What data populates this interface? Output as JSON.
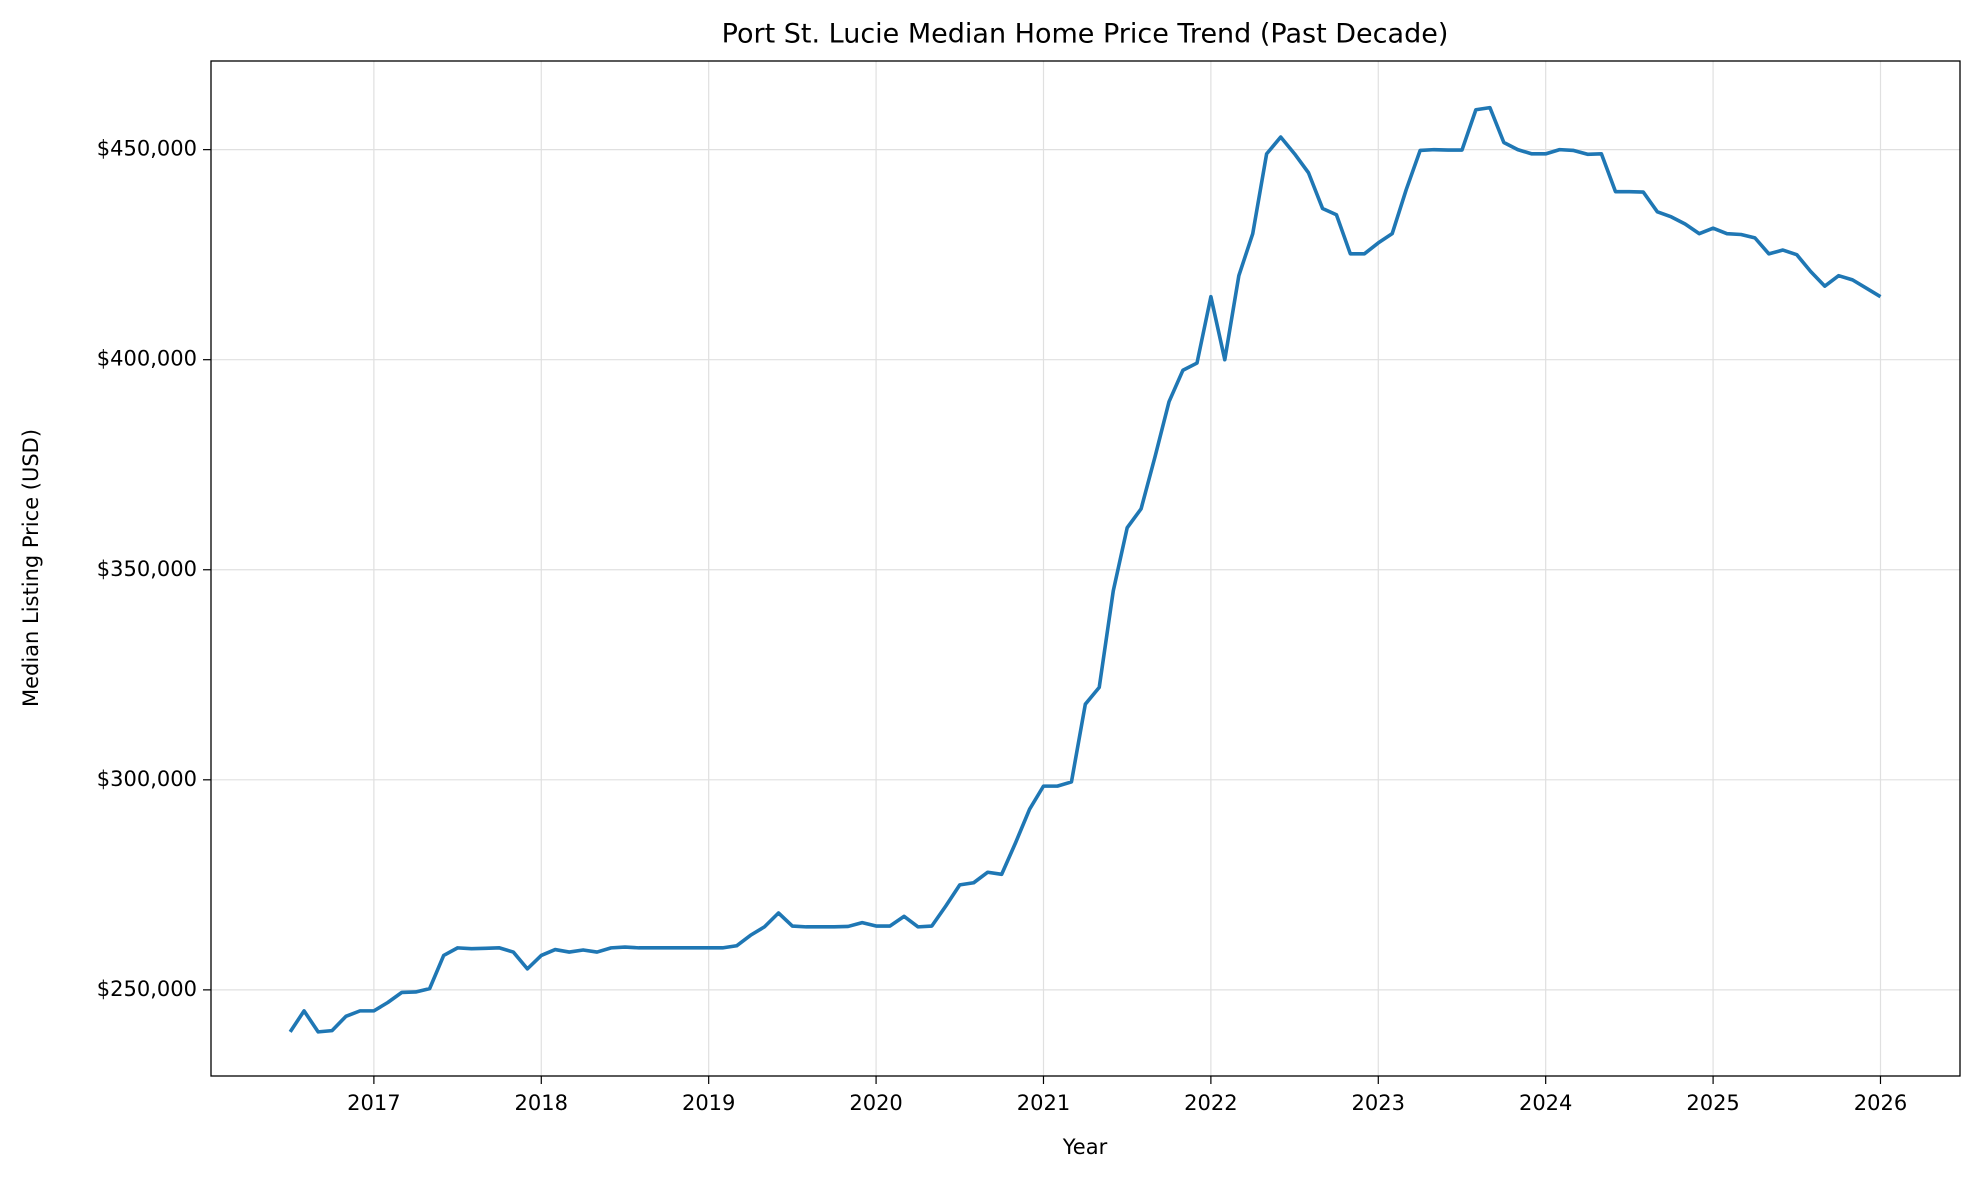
{
  "chart_data": {
    "type": "line",
    "title": "Port St. Lucie Median Home Price Trend (Past Decade)",
    "x_label": "Year",
    "y_label": "Median Listing Price (USD)",
    "color": "#1f77b4",
    "grid": true,
    "x": [
      2016.5,
      2016.583,
      2016.667,
      2016.75,
      2016.833,
      2016.917,
      2017,
      2017.083,
      2017.167,
      2017.25,
      2017.333,
      2017.417,
      2017.5,
      2017.583,
      2017.667,
      2017.75,
      2017.833,
      2017.917,
      2018,
      2018.083,
      2018.167,
      2018.25,
      2018.333,
      2018.417,
      2018.5,
      2018.583,
      2018.667,
      2018.75,
      2018.833,
      2018.917,
      2019,
      2019.083,
      2019.167,
      2019.25,
      2019.333,
      2019.417,
      2019.5,
      2019.583,
      2019.667,
      2019.75,
      2019.833,
      2019.917,
      2020,
      2020.083,
      2020.167,
      2020.25,
      2020.333,
      2020.417,
      2020.5,
      2020.583,
      2020.667,
      2020.75,
      2020.833,
      2020.917,
      2021,
      2021.083,
      2021.167,
      2021.25,
      2021.333,
      2021.417,
      2021.5,
      2021.583,
      2021.667,
      2021.75,
      2021.833,
      2021.917,
      2022,
      2022.083,
      2022.167,
      2022.25,
      2022.333,
      2022.417,
      2022.5,
      2022.583,
      2022.667,
      2022.75,
      2022.833,
      2022.917,
      2023,
      2023.083,
      2023.167,
      2023.25,
      2023.333,
      2023.417,
      2023.5,
      2023.583,
      2023.667,
      2023.75,
      2023.833,
      2023.917,
      2024,
      2024.083,
      2024.167,
      2024.25,
      2024.333,
      2024.417,
      2024.5,
      2024.583,
      2024.667,
      2024.75,
      2024.833,
      2024.917,
      2025,
      2025.083,
      2025.167,
      2025.25,
      2025.333,
      2025.417,
      2025.5,
      2025.583,
      2025.667,
      2025.75,
      2025.833,
      2025.917,
      2026
    ],
    "series": [
      {
        "color": "#1f77b4",
        "values": [
          240000,
          245000,
          240000,
          240300,
          243700,
          245000,
          245000,
          247000,
          249400,
          249500,
          250300,
          258200,
          260000,
          259800,
          259900,
          260000,
          259000,
          255000,
          258200,
          259600,
          259000,
          259500,
          259000,
          260000,
          260200,
          260000,
          260000,
          260000,
          260000,
          260000,
          260000,
          260000,
          260500,
          263000,
          265000,
          268300,
          265200,
          265000,
          265000,
          265000,
          265100,
          266000,
          265200,
          265200,
          267500,
          265000,
          265200,
          270000,
          275000,
          275500,
          278000,
          277500,
          285000,
          293000,
          298500,
          298500,
          299500,
          318000,
          322000,
          345000,
          360000,
          364500,
          377000,
          390000,
          397500,
          399200,
          415000,
          400000,
          420000,
          430000,
          449000,
          453000,
          449000,
          444500,
          436000,
          434500,
          425200,
          425200,
          427800,
          430000,
          440500,
          449800,
          450000,
          449900,
          449900,
          459500,
          460000,
          451700,
          450000,
          449000,
          449000,
          450000,
          449800,
          448900,
          449000,
          440000,
          440000,
          439900,
          435200,
          434000,
          432300,
          430000,
          431300,
          430000,
          429800,
          429000,
          425200,
          426100,
          425000,
          421000,
          417500,
          420000,
          419000,
          417000,
          415000
        ]
      }
    ],
    "xlim": [
      2016.027,
      2026.475
    ],
    "xticks": [
      2017,
      2018,
      2019,
      2020,
      2021,
      2022,
      2023,
      2024,
      2025,
      2026
    ],
    "ylim": [
      229500,
      471100
    ],
    "yticks": [
      {
        "value": 250000,
        "label": "$250,000"
      },
      {
        "value": 300000,
        "label": "$300,000"
      },
      {
        "value": 350000,
        "label": "$350,000"
      },
      {
        "value": 400000,
        "label": "$400,000"
      },
      {
        "value": 450000,
        "label": "$450,000"
      }
    ]
  }
}
